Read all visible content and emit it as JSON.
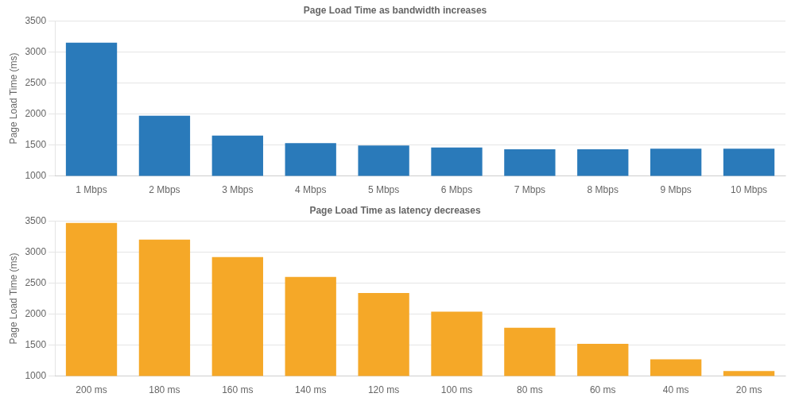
{
  "chart_data": [
    {
      "type": "bar",
      "title": "Page Load Time as bandwidth increases",
      "categories": [
        "1 Mbps",
        "2 Mbps",
        "3 Mbps",
        "4 Mbps",
        "5 Mbps",
        "6 Mbps",
        "7 Mbps",
        "8 Mbps",
        "9 Mbps",
        "10 Mbps"
      ],
      "values": [
        3150,
        1970,
        1650,
        1530,
        1490,
        1460,
        1430,
        1430,
        1440,
        1440
      ],
      "color": "#2a7aba",
      "ylabel": "Page Load Time (ms)",
      "ylim": [
        1000,
        3500
      ],
      "yticks": [
        1000,
        1500,
        2000,
        2500,
        3000,
        3500
      ],
      "grid": true
    },
    {
      "type": "bar",
      "title": "Page Load Time as latency decreases",
      "categories": [
        "200 ms",
        "180 ms",
        "160 ms",
        "140 ms",
        "120 ms",
        "100 ms",
        "80 ms",
        "60 ms",
        "40 ms",
        "20 ms"
      ],
      "values": [
        3470,
        3200,
        2920,
        2600,
        2340,
        2040,
        1780,
        1520,
        1270,
        1080
      ],
      "color": "#f5a828",
      "ylabel": "Page Load Time (ms)",
      "ylim": [
        1000,
        3500
      ],
      "yticks": [
        1000,
        1500,
        2000,
        2500,
        3000,
        3500
      ],
      "grid": true
    }
  ]
}
